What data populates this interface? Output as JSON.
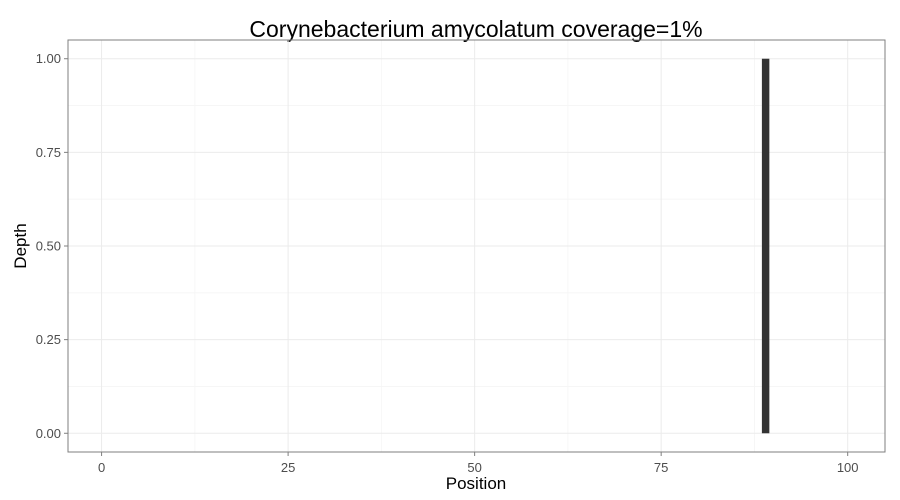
{
  "chart_data": {
    "type": "bar",
    "title": "Corynebacterium amycolatum coverage=1%",
    "xlabel": "Position",
    "ylabel": "Depth",
    "xlim": [
      -4.5,
      105
    ],
    "ylim": [
      -0.05,
      1.05
    ],
    "x_ticks": [
      0,
      25,
      50,
      75,
      100
    ],
    "x_tick_labels": [
      "0",
      "25",
      "50",
      "75",
      "100"
    ],
    "y_ticks": [
      0,
      0.25,
      0.5,
      0.75,
      1.0
    ],
    "y_tick_labels": [
      "0.00",
      "0.25",
      "0.50",
      "0.75",
      "1.00"
    ],
    "grid": true,
    "bars": [
      {
        "x": 89,
        "y": 1.0,
        "width": 1
      }
    ],
    "colors": {
      "bar": "#333333",
      "panel_border": "#7f7f7f",
      "grid_major": "#ebebeb",
      "grid_minor": "#f5f5f5"
    }
  }
}
